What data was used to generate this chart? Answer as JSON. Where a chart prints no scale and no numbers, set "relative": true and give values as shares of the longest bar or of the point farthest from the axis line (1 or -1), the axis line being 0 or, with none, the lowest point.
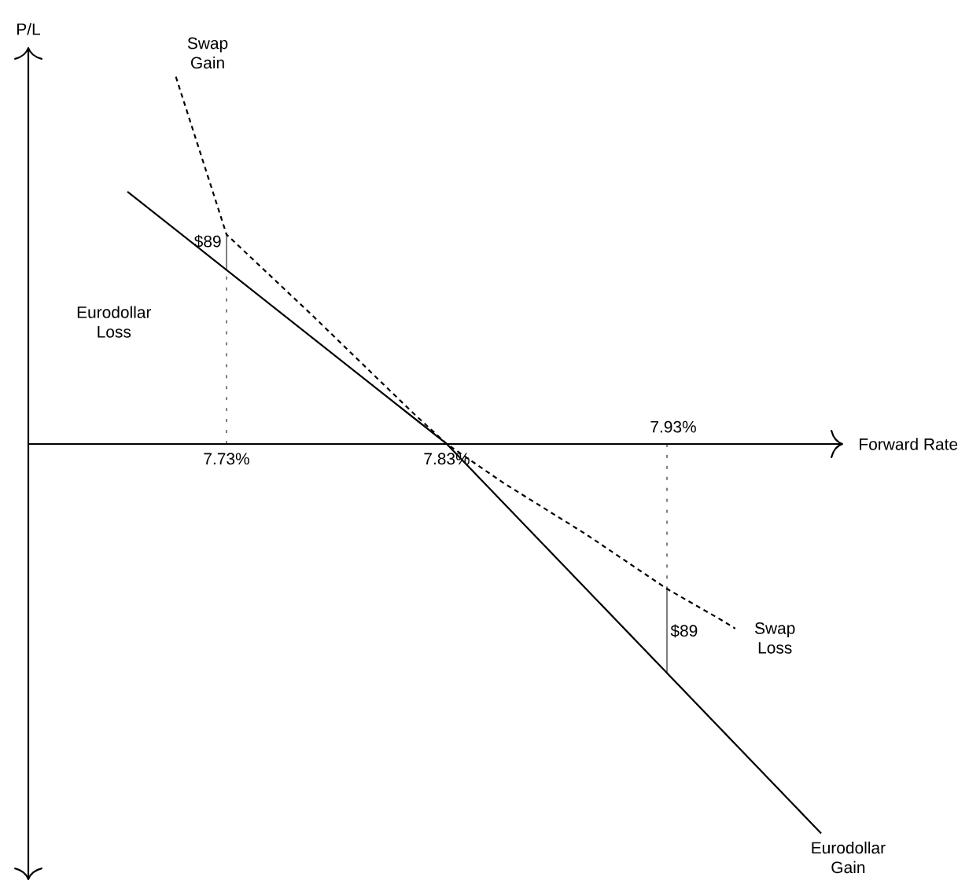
{
  "chart_data": {
    "type": "line",
    "xlabel": "Forward Rate",
    "ylabel": "P/L",
    "relative": true,
    "xlim": [
      7.64,
      8.01
    ],
    "xticks": [
      {
        "value": 7.73,
        "label": "7.73%"
      },
      {
        "value": 7.83,
        "label": "7.83%"
      }
    ],
    "series": [
      {
        "color": "#000000",
        "line_style": "solid",
        "x": [
          7.685,
          7.83,
          8.0
        ],
        "values": [
          0.648,
          0,
          -1.0
        ]
      },
      {
        "color": "#000000",
        "line_style": "dashed",
        "x": [
          7.707,
          7.73,
          7.769,
          7.8,
          7.815,
          7.83,
          7.856,
          7.893,
          7.93,
          7.955,
          7.961
        ],
        "values": [
          0.943,
          0.538,
          0.33,
          0.16,
          0.078,
          0,
          -0.101,
          -0.231,
          -0.372,
          -0.453,
          -0.474
        ]
      },
      {
        "color": "#000000",
        "line_style": "dotted",
        "x": [
          7.73,
          7.73
        ],
        "values": [
          0,
          0.445
        ]
      },
      {
        "color": "#000000",
        "line_style": "solid",
        "x": [
          7.73,
          7.73
        ],
        "values": [
          0.445,
          0.538
        ]
      },
      {
        "color": "#000000",
        "line_style": "dotted",
        "x": [
          7.93,
          7.93
        ],
        "values": [
          0,
          -0.372
        ]
      },
      {
        "color": "#000000",
        "line_style": "solid",
        "x": [
          7.93,
          7.93
        ],
        "values": [
          -0.372,
          -0.588
        ]
      }
    ],
    "annotations": [
      {
        "text": "Swap Gain",
        "x": 7.707,
        "y": 0.943
      },
      "Eurodollar Loss",
      {
        "text": "$89",
        "x": 7.73,
        "y": 0.49
      },
      {
        "text": "Swap Loss",
        "x": 7.961,
        "y": -0.474
      },
      {
        "text": "Eurodollar Gain",
        "x": 8.0,
        "y": -1.0
      },
      {
        "text": "$89",
        "x": 7.93,
        "y": -0.48
      },
      {
        "text": "7.93%",
        "x": 7.93,
        "y": 0
      }
    ]
  }
}
